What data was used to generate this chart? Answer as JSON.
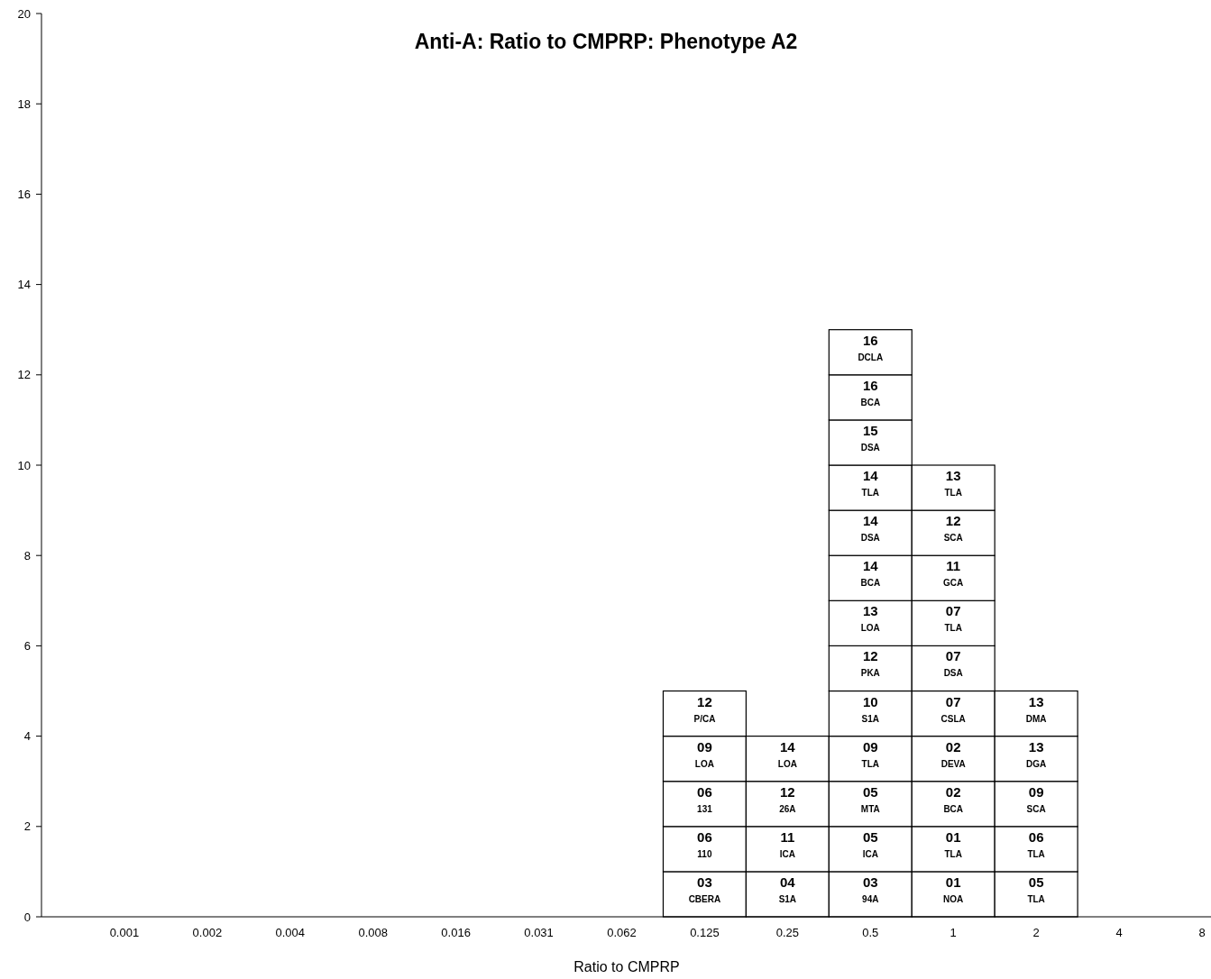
{
  "chart_data": {
    "type": "bar",
    "stacked": true,
    "title": "Anti-A: Ratio to CMPRP: Phenotype A2",
    "xlabel": "Ratio to CMPRP",
    "categories": [
      "0.001",
      "0.002",
      "0.004",
      "0.008",
      "0.016",
      "0.031",
      "0.062",
      "0.125",
      "0.25",
      "0.5",
      "1",
      "2",
      "4",
      "8"
    ],
    "ylim": [
      0,
      20
    ],
    "yticks": [
      0,
      2,
      4,
      6,
      8,
      10,
      12,
      14,
      16,
      18,
      20
    ],
    "series": [
      {
        "color": "#ffffff",
        "values": [
          null,
          null,
          null,
          null,
          null,
          null,
          null,
          1,
          1,
          1,
          1,
          1,
          null,
          null
        ]
      },
      {
        "color": "#ffffff",
        "values": [
          null,
          null,
          null,
          null,
          null,
          null,
          null,
          1,
          1,
          1,
          1,
          1,
          null,
          null
        ]
      },
      {
        "color": "#ffffff",
        "values": [
          null,
          null,
          null,
          null,
          null,
          null,
          null,
          1,
          1,
          1,
          1,
          1,
          null,
          null
        ]
      },
      {
        "color": "#ffffff",
        "values": [
          null,
          null,
          null,
          null,
          null,
          null,
          null,
          1,
          1,
          1,
          1,
          1,
          null,
          null
        ]
      },
      {
        "color": "#ffffff",
        "values": [
          null,
          null,
          null,
          null,
          null,
          null,
          null,
          1,
          null,
          1,
          1,
          1,
          null,
          null
        ]
      },
      {
        "color": "#ffffff",
        "values": [
          null,
          null,
          null,
          null,
          null,
          null,
          null,
          null,
          null,
          1,
          1,
          null,
          null,
          null
        ]
      },
      {
        "color": "#ffffff",
        "values": [
          null,
          null,
          null,
          null,
          null,
          null,
          null,
          null,
          null,
          1,
          1,
          null,
          null,
          null
        ]
      },
      {
        "color": "#ffffff",
        "values": [
          null,
          null,
          null,
          null,
          null,
          null,
          null,
          null,
          null,
          1,
          1,
          null,
          null,
          null
        ]
      },
      {
        "color": "#ffffff",
        "values": [
          null,
          null,
          null,
          null,
          null,
          null,
          null,
          null,
          null,
          1,
          1,
          null,
          null,
          null
        ]
      },
      {
        "color": "#ffffff",
        "values": [
          null,
          null,
          null,
          null,
          null,
          null,
          null,
          null,
          null,
          1,
          1,
          null,
          null,
          null
        ]
      },
      {
        "color": "#ffffff",
        "values": [
          null,
          null,
          null,
          null,
          null,
          null,
          null,
          null,
          null,
          1,
          null,
          null,
          null,
          null
        ]
      },
      {
        "color": "#ffffff",
        "values": [
          null,
          null,
          null,
          null,
          null,
          null,
          null,
          null,
          null,
          1,
          null,
          null,
          null,
          null
        ]
      },
      {
        "color": "#ffffff",
        "values": [
          null,
          null,
          null,
          null,
          null,
          null,
          null,
          null,
          null,
          1,
          null,
          null,
          null,
          null
        ]
      }
    ],
    "annotations": [
      {
        "text": "03\nCBERA",
        "x": "0.125",
        "y": 1
      },
      {
        "text": "06\n110",
        "x": "0.125",
        "y": 2
      },
      {
        "text": "06\n131",
        "x": "0.125",
        "y": 3
      },
      {
        "text": "09\nLOA",
        "x": "0.125",
        "y": 4
      },
      {
        "text": "12\nP/CA",
        "x": "0.125",
        "y": 5
      },
      {
        "text": "04\nS1A",
        "x": "0.25",
        "y": 1
      },
      {
        "text": "11\nICA",
        "x": "0.25",
        "y": 2
      },
      {
        "text": "12\n26A",
        "x": "0.25",
        "y": 3
      },
      {
        "text": "14\nLOA",
        "x": "0.25",
        "y": 4
      },
      {
        "text": "03\n94A",
        "x": "0.5",
        "y": 1
      },
      {
        "text": "05\nICA",
        "x": "0.5",
        "y": 2
      },
      {
        "text": "05\nMTA",
        "x": "0.5",
        "y": 3
      },
      {
        "text": "09\nTLA",
        "x": "0.5",
        "y": 4
      },
      {
        "text": "10\nS1A",
        "x": "0.5",
        "y": 5
      },
      {
        "text": "12\nPKA",
        "x": "0.5",
        "y": 6
      },
      {
        "text": "13\nLOA",
        "x": "0.5",
        "y": 7
      },
      {
        "text": "14\nBCA",
        "x": "0.5",
        "y": 8
      },
      {
        "text": "14\nDSA",
        "x": "0.5",
        "y": 9
      },
      {
        "text": "14\nTLA",
        "x": "0.5",
        "y": 10
      },
      {
        "text": "15\nDSA",
        "x": "0.5",
        "y": 11
      },
      {
        "text": "16\nBCA",
        "x": "0.5",
        "y": 12
      },
      {
        "text": "16\nDCLA",
        "x": "0.5",
        "y": 13
      },
      {
        "text": "01\nNOA",
        "x": "1",
        "y": 1
      },
      {
        "text": "01\nTLA",
        "x": "1",
        "y": 2
      },
      {
        "text": "02\nBCA",
        "x": "1",
        "y": 3
      },
      {
        "text": "02\nDEVA",
        "x": "1",
        "y": 4
      },
      {
        "text": "07\nCSLA",
        "x": "1",
        "y": 5
      },
      {
        "text": "07\nDSA",
        "x": "1",
        "y": 6
      },
      {
        "text": "07\nTLA",
        "x": "1",
        "y": 7
      },
      {
        "text": "11\nGCA",
        "x": "1",
        "y": 8
      },
      {
        "text": "12\nSCA",
        "x": "1",
        "y": 9
      },
      {
        "text": "13\nTLA",
        "x": "1",
        "y": 10
      },
      {
        "text": "05\nTLA",
        "x": "2",
        "y": 1
      },
      {
        "text": "06\nTLA",
        "x": "2",
        "y": 2
      },
      {
        "text": "09\nSCA",
        "x": "2",
        "y": 3
      },
      {
        "text": "13\nDGA",
        "x": "2",
        "y": 4
      },
      {
        "text": "13\nDMA",
        "x": "2",
        "y": 5
      }
    ]
  }
}
